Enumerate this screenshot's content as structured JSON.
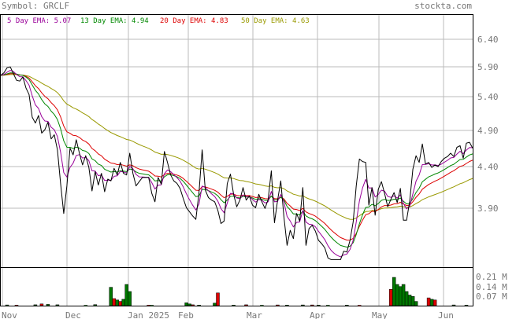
{
  "header": {
    "symbol_label": "Symbol: GRCLF",
    "site": "stockta.com"
  },
  "legend": [
    {
      "label": "5 Day EMA: 5.07",
      "color": "#990099"
    },
    {
      "label": "13 Day EMA: 4.94",
      "color": "#008800"
    },
    {
      "label": "20 Day EMA: 4.83",
      "color": "#dd0000"
    },
    {
      "label": "50 Day EMA: 4.63",
      "color": "#999900"
    }
  ],
  "colors": {
    "price": "#000000",
    "ema5": "#990099",
    "ema13": "#008800",
    "ema20": "#dd0000",
    "ema50": "#999900",
    "grid": "#bbbbbb",
    "vol_up": "#007700",
    "vol_down": "#dd0000"
  },
  "chart_data": [
    {
      "type": "line",
      "x_ticks": [
        "Nov",
        "Dec",
        "Jan 2025",
        "Feb",
        "Mar",
        "Apr",
        "May",
        "Jun"
      ],
      "y_ticks": [
        "6.40",
        "5.90",
        "5.40",
        "4.90",
        "4.40",
        "3.90"
      ],
      "ylim": [
        3.64,
        6.65
      ],
      "series": [
        {
          "key": "price",
          "values": [
            5.93,
            5.96,
            6.02,
            6.03,
            5.95,
            5.87,
            5.86,
            5.91,
            5.78,
            5.7,
            5.43,
            5.36,
            5.45,
            5.24,
            5.28,
            5.37,
            5.17,
            5.22,
            5.04,
            4.64,
            4.28,
            4.61,
            5.06,
            4.98,
            5.16,
            5.0,
            4.86,
            4.97,
            4.83,
            4.55,
            4.78,
            4.62,
            4.76,
            4.54,
            4.69,
            4.67,
            4.82,
            4.74,
            4.89,
            4.76,
            4.74,
            5.0,
            4.76,
            4.61,
            4.66,
            4.71,
            4.71,
            4.71,
            4.52,
            4.42,
            4.71,
            4.63,
            5.02,
            4.89,
            4.74,
            4.67,
            4.64,
            4.58,
            4.46,
            4.35,
            4.3,
            4.25,
            4.21,
            4.53,
            5.04,
            4.56,
            4.47,
            4.44,
            4.42,
            4.32,
            4.16,
            4.19,
            4.64,
            4.75,
            4.51,
            4.36,
            4.44,
            4.59,
            4.44,
            4.49,
            4.38,
            4.35,
            4.51,
            4.42,
            4.34,
            4.45,
            4.79,
            4.17,
            4.44,
            4.67,
            4.24,
            3.9,
            4.08,
            3.98,
            4.28,
            4.19,
            4.59,
            3.9,
            4.1,
            4.14,
            4.07,
            3.96,
            3.92,
            3.87,
            3.75,
            3.73,
            3.73,
            3.73,
            3.73,
            3.83,
            3.82,
            3.96,
            4.18,
            4.61,
            4.93,
            4.9,
            4.89,
            4.38,
            4.59,
            4.26,
            4.57,
            4.66,
            4.52,
            4.36,
            4.45,
            4.53,
            4.41,
            4.58,
            4.2,
            4.2,
            4.43,
            4.81,
            4.97,
            4.89,
            5.11,
            4.87,
            4.89,
            4.83,
            4.86,
            4.84,
            4.9,
            4.94,
            4.96,
            5.0,
            4.96,
            5.07,
            5.09,
            4.94,
            5.12,
            5.13,
            5.06
          ]
        }
      ]
    },
    {
      "type": "bar",
      "y_ticks": [
        "0.21 M",
        "0.14 M",
        "0.07 M"
      ],
      "ylim": [
        0,
        0.2667
      ],
      "units": "M",
      "bars": [
        {
          "i": 2,
          "v": 0.005,
          "up": true
        },
        {
          "i": 5,
          "v": 0.004,
          "up": false
        },
        {
          "i": 11,
          "v": 0.006,
          "up": true
        },
        {
          "i": 13,
          "v": 0.012,
          "up": false
        },
        {
          "i": 15,
          "v": 0.009,
          "up": true
        },
        {
          "i": 18,
          "v": 0.006,
          "up": true
        },
        {
          "i": 27,
          "v": 0.003,
          "up": true
        },
        {
          "i": 30,
          "v": 0.007,
          "up": true
        },
        {
          "i": 35,
          "v": 0.13,
          "up": true
        },
        {
          "i": 36,
          "v": 0.05,
          "up": false
        },
        {
          "i": 37,
          "v": 0.04,
          "up": true
        },
        {
          "i": 38,
          "v": 0.03,
          "up": false
        },
        {
          "i": 39,
          "v": 0.045,
          "up": true
        },
        {
          "i": 40,
          "v": 0.15,
          "up": true
        },
        {
          "i": 41,
          "v": 0.1,
          "up": true
        },
        {
          "i": 47,
          "v": 0.004,
          "up": false
        },
        {
          "i": 48,
          "v": 0.003,
          "up": true
        },
        {
          "i": 59,
          "v": 0.02,
          "up": true
        },
        {
          "i": 60,
          "v": 0.012,
          "up": true
        },
        {
          "i": 61,
          "v": 0.006,
          "up": false
        },
        {
          "i": 63,
          "v": 0.004,
          "up": true
        },
        {
          "i": 68,
          "v": 0.018,
          "up": true
        },
        {
          "i": 69,
          "v": 0.09,
          "up": false
        },
        {
          "i": 74,
          "v": 0.004,
          "up": true
        },
        {
          "i": 78,
          "v": 0.006,
          "up": false
        },
        {
          "i": 83,
          "v": 0.003,
          "up": true
        },
        {
          "i": 88,
          "v": 0.005,
          "up": false
        },
        {
          "i": 91,
          "v": 0.004,
          "up": true
        },
        {
          "i": 96,
          "v": 0.005,
          "up": true
        },
        {
          "i": 99,
          "v": 0.005,
          "up": false
        },
        {
          "i": 101,
          "v": 0.004,
          "up": true
        },
        {
          "i": 104,
          "v": 0.003,
          "up": true
        },
        {
          "i": 110,
          "v": 0.004,
          "up": true
        },
        {
          "i": 114,
          "v": 0.003,
          "up": false
        },
        {
          "i": 124,
          "v": 0.115,
          "up": false
        },
        {
          "i": 125,
          "v": 0.2,
          "up": true
        },
        {
          "i": 126,
          "v": 0.15,
          "up": true
        },
        {
          "i": 127,
          "v": 0.135,
          "up": true
        },
        {
          "i": 128,
          "v": 0.15,
          "up": true
        },
        {
          "i": 129,
          "v": 0.1,
          "up": true
        },
        {
          "i": 130,
          "v": 0.075,
          "up": true
        },
        {
          "i": 131,
          "v": 0.065,
          "up": true
        },
        {
          "i": 132,
          "v": 0.03,
          "up": true
        },
        {
          "i": 136,
          "v": 0.055,
          "up": false
        },
        {
          "i": 137,
          "v": 0.045,
          "up": true
        },
        {
          "i": 138,
          "v": 0.04,
          "up": false
        },
        {
          "i": 144,
          "v": 0.005,
          "up": true
        },
        {
          "i": 148,
          "v": 0.004,
          "up": true
        }
      ]
    }
  ]
}
